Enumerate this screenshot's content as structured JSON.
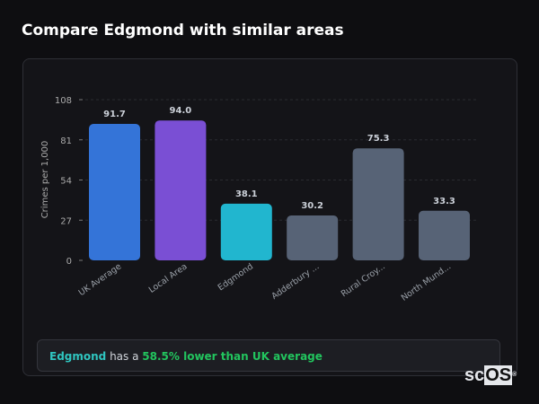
{
  "title": "Compare Edgmond with similar areas",
  "chart_data": {
    "type": "bar",
    "ylabel": "Crimes per 1,000",
    "ylim": [
      0,
      108
    ],
    "yticks": [
      0,
      27,
      54,
      81,
      108
    ],
    "grid": true,
    "categories": [
      "UK Average",
      "Local Area",
      "Edgmond",
      "Adderbury ...",
      "Rural Croy...",
      "North Mund..."
    ],
    "values": [
      91.7,
      94.0,
      38.1,
      30.2,
      75.3,
      33.3
    ],
    "labels": [
      "91.7",
      "94.0",
      "38.1",
      "30.2",
      "75.3",
      "33.3"
    ],
    "colors": [
      "#3474d8",
      "#7a4fd4",
      "#21b6cf",
      "#576376",
      "#576376",
      "#576376"
    ]
  },
  "summary": {
    "area": "Edgmond",
    "middle": " has a ",
    "diff": "58.5% lower than UK average"
  },
  "logo": {
    "text": "scOS"
  }
}
